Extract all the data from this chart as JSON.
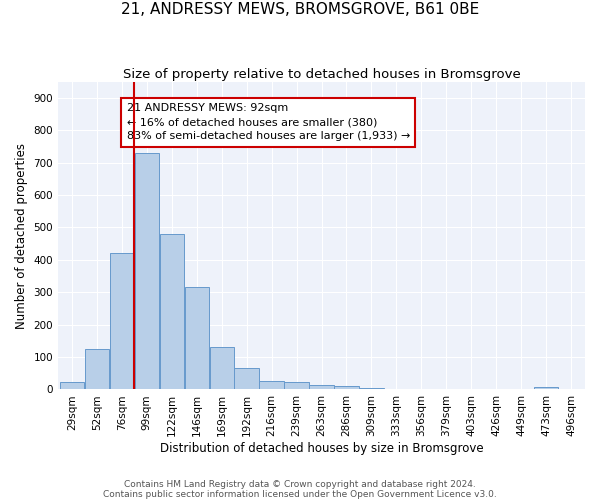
{
  "title": "21, ANDRESSY MEWS, BROMSGROVE, B61 0BE",
  "subtitle": "Size of property relative to detached houses in Bromsgrove",
  "xlabel": "Distribution of detached houses by size in Bromsgrove",
  "ylabel": "Number of detached properties",
  "bin_labels": [
    "29sqm",
    "52sqm",
    "76sqm",
    "99sqm",
    "122sqm",
    "146sqm",
    "169sqm",
    "192sqm",
    "216sqm",
    "239sqm",
    "263sqm",
    "286sqm",
    "309sqm",
    "333sqm",
    "356sqm",
    "379sqm",
    "403sqm",
    "426sqm",
    "449sqm",
    "473sqm",
    "496sqm"
  ],
  "bar_heights": [
    22,
    125,
    420,
    730,
    480,
    315,
    130,
    65,
    25,
    22,
    13,
    10,
    5,
    2,
    2,
    1,
    0,
    0,
    0,
    8,
    0
  ],
  "bar_color": "#b8cfe8",
  "bar_edgecolor": "#6699cc",
  "vline_color": "#cc0000",
  "annotation_text": "21 ANDRESSY MEWS: 92sqm\n← 16% of detached houses are smaller (380)\n83% of semi-detached houses are larger (1,933) →",
  "annotation_box_edgecolor": "#cc0000",
  "annotation_box_facecolor": "#ffffff",
  "ylim": [
    0,
    950
  ],
  "yticks": [
    0,
    100,
    200,
    300,
    400,
    500,
    600,
    700,
    800,
    900
  ],
  "footer": "Contains HM Land Registry data © Crown copyright and database right 2024.\nContains public sector information licensed under the Open Government Licence v3.0.",
  "background_color": "#eef2fa",
  "grid_color": "#ffffff",
  "title_fontsize": 11,
  "subtitle_fontsize": 9.5,
  "label_fontsize": 8.5,
  "tick_fontsize": 7.5,
  "annot_fontsize": 8,
  "footer_fontsize": 6.5
}
